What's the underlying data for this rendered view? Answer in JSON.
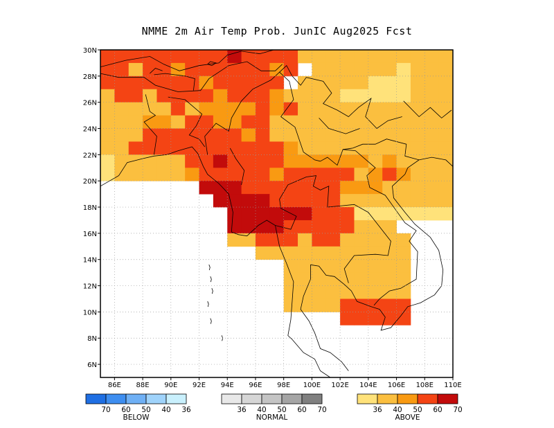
{
  "title": "NMME 2m Air Temp Prob. JunIC  Aug2025 Fcst",
  "axes": {
    "lon_min": 85,
    "lon_max": 110,
    "lat_min": 5,
    "lat_max": 30,
    "lon_ticks": [
      86,
      88,
      90,
      92,
      94,
      96,
      98,
      100,
      102,
      104,
      106,
      108,
      110
    ],
    "lat_ticks": [
      6,
      8,
      10,
      12,
      14,
      16,
      18,
      20,
      22,
      24,
      26,
      28,
      30
    ],
    "lon_labels": [
      "86E",
      "88E",
      "90E",
      "92E",
      "94E",
      "96E",
      "98E",
      "100E",
      "102E",
      "104E",
      "106E",
      "108E",
      "110E"
    ],
    "lat_labels": [
      "6N",
      "8N",
      "10N",
      "12N",
      "14N",
      "16N",
      "18N",
      "20N",
      "22N",
      "24N",
      "26N",
      "28N",
      "30N"
    ],
    "grid": "dotted"
  },
  "legends": [
    {
      "name": "BELOW",
      "colors": [
        "#1f6fe3",
        "#3e8ef0",
        "#6fb0f5",
        "#9fd3fb",
        "#c9f0fd"
      ],
      "labels": [
        "70",
        "60",
        "50",
        "40",
        "36"
      ]
    },
    {
      "name": "NORMAL",
      "colors": [
        "#e8e8e8",
        "#d6d6d6",
        "#c4c4c4",
        "#a5a5a5",
        "#808080"
      ],
      "labels": [
        "36",
        "40",
        "50",
        "60",
        "70"
      ]
    },
    {
      "name": "ABOVE",
      "colors": [
        "#ffe27a",
        "#fbbf3f",
        "#f99a12",
        "#f44414",
        "#c20b0b"
      ],
      "labels": [
        "36",
        "40",
        "50",
        "60",
        "70"
      ]
    }
  ],
  "chart_data": {
    "type": "heatmap",
    "title": "NMME 2m Air Temp Prob. JunIC  Aug2025 Fcst",
    "lon_range": [
      85,
      110
    ],
    "lat_range": [
      5,
      30
    ],
    "cell_deg": 1,
    "category_scale": {
      "0": "none",
      "1": "above 36-40",
      "2": "above 40-50",
      "3": "above 50-60",
      "4": "above 60-70",
      "5": "above >70"
    },
    "rows_north_to_south": [
      "4444444445444422222222222",
      "4424434444443402222221222",
      "4444444344444022222111222",
      "2442444434443222211111222",
      "2222242333343422222222222",
      "2223324433442222222222222",
      "2224444444342222222222222",
      "2244444444444322222222222",
      "1222224454444333333232222",
      "1222223444443444442343222",
      "0000000555444444433322222",
      "0000000055554444422222222",
      "0000000005555554441111111",
      "0000000005555444442220000",
      "0000000002244424422222000",
      "0000000000022222222222000",
      "0000000000000222222222000",
      "0000000000000222222222000",
      "0000000000000222222222000",
      "0000000000000222244444000",
      "0000000000000000044444000",
      "0000000000000000000000000",
      "0000000000000000000000000",
      "0000000000000000000000000",
      "0000000000000000000000000"
    ]
  }
}
